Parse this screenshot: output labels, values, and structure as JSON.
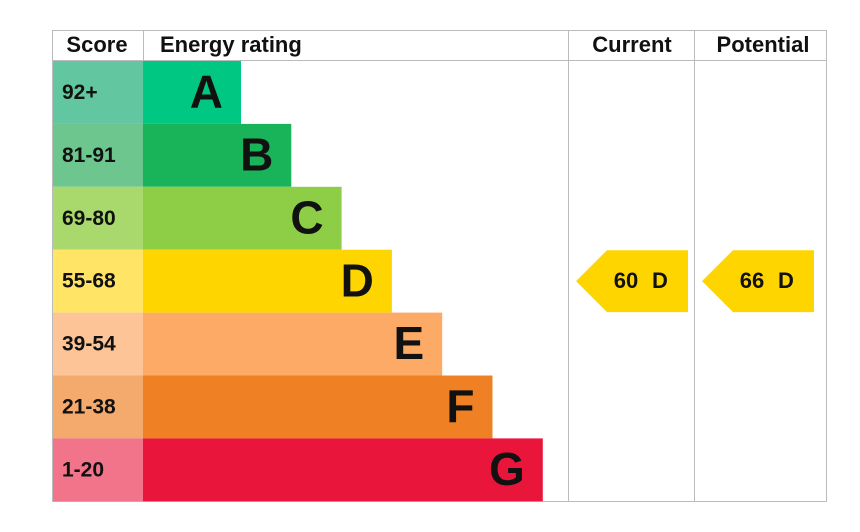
{
  "header": {
    "score": "Score",
    "energy_rating": "Energy rating",
    "current": "Current",
    "potential": "Potential"
  },
  "bands": [
    {
      "score": "92+",
      "rating": "A"
    },
    {
      "score": "81-91",
      "rating": "B"
    },
    {
      "score": "69-80",
      "rating": "C"
    },
    {
      "score": "55-68",
      "rating": "D"
    },
    {
      "score": "39-54",
      "rating": "E"
    },
    {
      "score": "21-38",
      "rating": "F"
    },
    {
      "score": "1-20",
      "rating": "G"
    }
  ],
  "current": {
    "score": 60,
    "rating": "D"
  },
  "potential": {
    "score": 66,
    "rating": "D"
  }
}
